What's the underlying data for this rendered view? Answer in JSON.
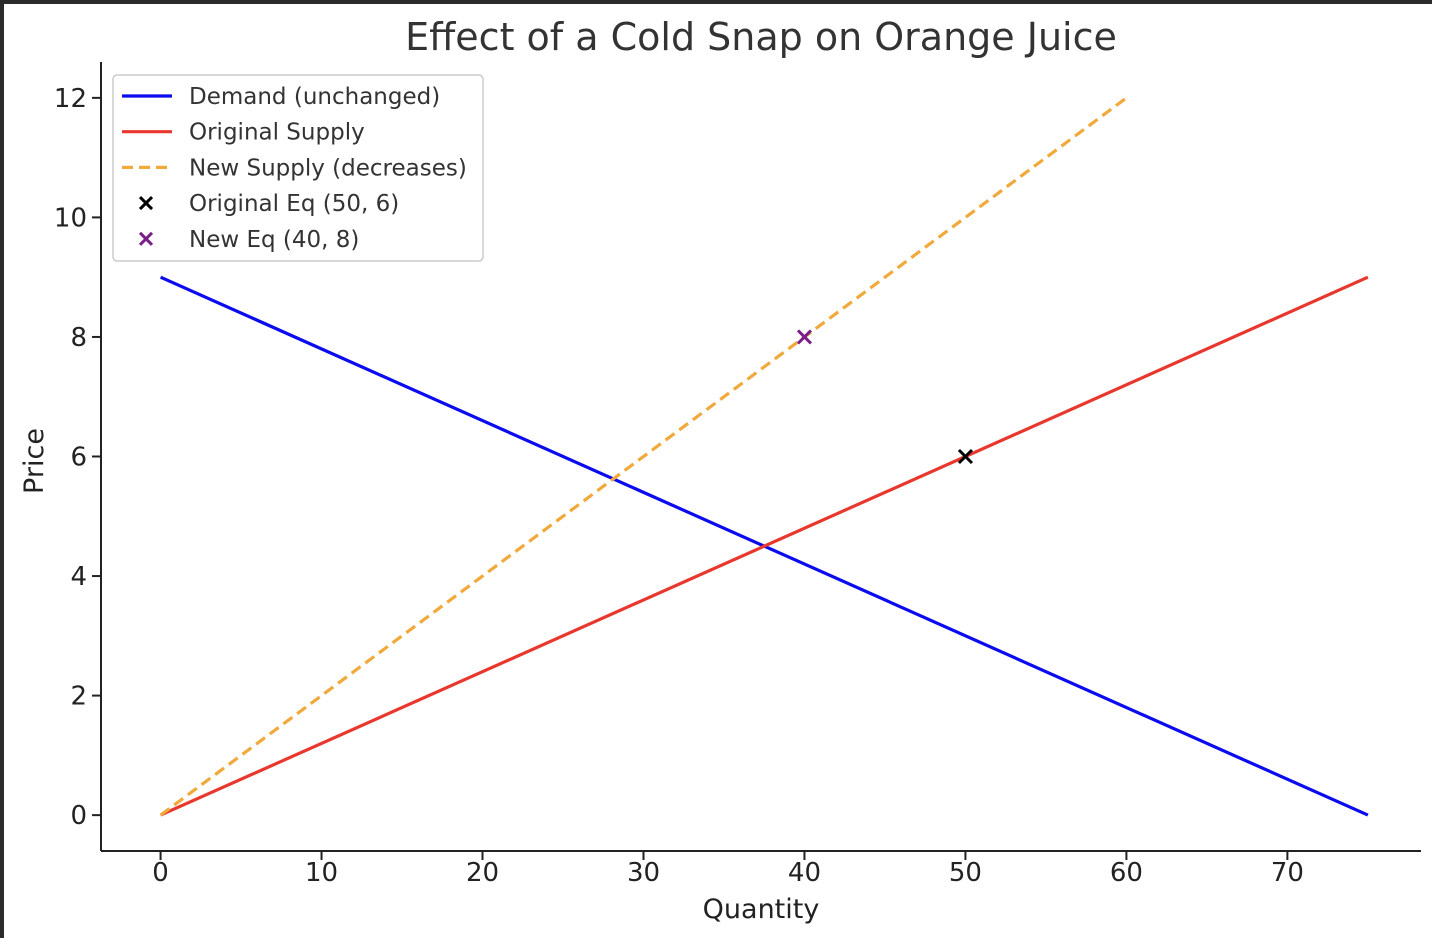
{
  "chart_data": {
    "type": "line",
    "title": "Effect of a Cold Snap on Orange Juice",
    "xlabel": "Quantity",
    "ylabel": "Price",
    "xlim": [
      -3.7,
      78.3
    ],
    "ylim": [
      -0.6,
      12.6
    ],
    "xticks": [
      "0",
      "10",
      "20",
      "30",
      "40",
      "50",
      "60",
      "70"
    ],
    "yticks": [
      "0",
      "2",
      "4",
      "6",
      "8",
      "10",
      "12"
    ],
    "grid": false,
    "legend_position": "top-left",
    "series": [
      {
        "name": "Demand (unchanged)",
        "color": "#0b0bf0",
        "style": "solid",
        "x": [
          0,
          75
        ],
        "y": [
          9,
          0
        ]
      },
      {
        "name": "Original Supply",
        "color": "#e8382e",
        "style": "solid",
        "x": [
          0,
          75
        ],
        "y": [
          0,
          9
        ]
      },
      {
        "name": "New Supply (decreases)",
        "color": "#f0a93a",
        "style": "dashed",
        "x": [
          0,
          60
        ],
        "y": [
          0,
          12
        ]
      }
    ],
    "points": [
      {
        "name": "Original Eq (50, 6)",
        "x": 50,
        "y": 6,
        "color": "#000000",
        "marker": "x"
      },
      {
        "name": "New Eq (40, 8)",
        "x": 40,
        "y": 8,
        "color": "#7a1f8a",
        "marker": "x"
      }
    ]
  }
}
